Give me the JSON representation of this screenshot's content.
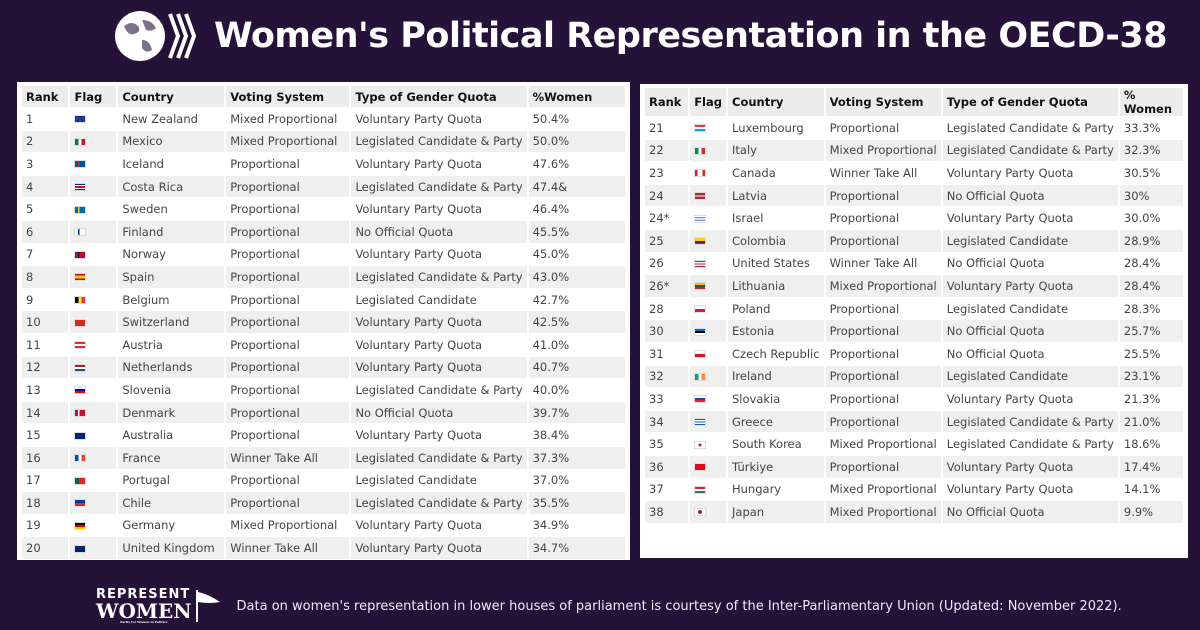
{
  "header": {
    "title": "Women's Political Representation in the OECD-38",
    "logo_icon": "oecd-globe-icon"
  },
  "columns_left": [
    "Rank",
    "Flag",
    "Country",
    "Voting System",
    "Type of Gender Quota",
    "%Women"
  ],
  "columns_right": [
    "Rank",
    "Flag",
    "Country",
    "Voting System",
    "Type of Gender Quota",
    "% Women"
  ],
  "rows_left": [
    [
      "1",
      "nz",
      "New Zealand",
      "Mixed Proportional",
      "Voluntary Party Quota",
      "50.4%"
    ],
    [
      "2",
      "mx",
      "Mexico",
      "Mixed Proportional",
      "Legislated Candidate & Party",
      "50.0%"
    ],
    [
      "3",
      "is",
      "Iceland",
      "Proportional",
      "Voluntary Party Quota",
      "47.6%"
    ],
    [
      "4",
      "cr",
      "Costa Rica",
      "Proportional",
      "Legislated Candidate & Party",
      "47.4&"
    ],
    [
      "5",
      "se",
      "Sweden",
      "Proportional",
      "Voluntary Party Quota",
      "46.4%"
    ],
    [
      "6",
      "fi",
      "Finland",
      "Proportional",
      "No Official Quota",
      "45.5%"
    ],
    [
      "7",
      "no",
      "Norway",
      "Proportional",
      "Voluntary Party Quota",
      "45.0%"
    ],
    [
      "8",
      "es",
      "Spain",
      "Proportional",
      "Legislated Candidate & Party",
      "43.0%"
    ],
    [
      "9",
      "be",
      "Belgium",
      "Proportional",
      "Legislated Candidate",
      "42.7%"
    ],
    [
      "10",
      "ch",
      "Switzerland",
      "Proportional",
      "Voluntary Party Quota",
      "42.5%"
    ],
    [
      "11",
      "at",
      "Austria",
      "Proportional",
      "Voluntary Party Quota",
      "41.0%"
    ],
    [
      "12",
      "nl",
      "Netherlands",
      "Proportional",
      "Voluntary Party Quota",
      "40.7%"
    ],
    [
      "13",
      "si",
      "Slovenia",
      "Proportional",
      "Legislated Candidate & Party",
      "40.0%"
    ],
    [
      "14",
      "dk",
      "Denmark",
      "Proportional",
      "No Official Quota",
      "39.7%"
    ],
    [
      "15",
      "au",
      "Australia",
      "Proportional",
      "Voluntary Party Quota",
      "38.4%"
    ],
    [
      "16",
      "fr",
      "France",
      "Winner Take All",
      "Legislated Candidate & Party",
      "37.3%"
    ],
    [
      "17",
      "pt",
      "Portugal",
      "Proportional",
      "Legislated Candidate",
      "37.0%"
    ],
    [
      "18",
      "cl",
      "Chile",
      "Proportional",
      "Legislated Candidate & Party",
      "35.5%"
    ],
    [
      "19",
      "de",
      "Germany",
      "Mixed Proportional",
      "Voluntary Party Quota",
      "34.9%"
    ],
    [
      "20",
      "gb",
      "United Kingdom",
      "Winner Take All",
      "Voluntary Party Quota",
      "34.7%"
    ]
  ],
  "rows_right": [
    [
      "21",
      "lu",
      "Luxembourg",
      "Proportional",
      "Legislated Candidate & Party",
      "33.3%"
    ],
    [
      "22",
      "it",
      "Italy",
      "Mixed Proportional",
      "Legislated Candidate & Party",
      "32.3%"
    ],
    [
      "23",
      "ca",
      "Canada",
      "Winner Take All",
      "Voluntary Party Quota",
      "30.5%"
    ],
    [
      "24",
      "lv",
      "Latvia",
      "Proportional",
      "No Official Quota",
      "30%"
    ],
    [
      "24*",
      "il",
      "Israel",
      "Proportional",
      "Voluntary Party Quota",
      "30.0%"
    ],
    [
      "25",
      "co",
      "Colombia",
      "Proportional",
      "Legislated Candidate",
      "28.9%"
    ],
    [
      "26",
      "us",
      "United States",
      "Winner Take All",
      "No Official Quota",
      "28.4%"
    ],
    [
      "26*",
      "lt",
      "Lithuania",
      "Mixed Proportional",
      "Voluntary Party Quota",
      "28.4%"
    ],
    [
      "28",
      "pl",
      "Poland",
      "Proportional",
      "Legislated Candidate",
      "28.3%"
    ],
    [
      "30",
      "ee",
      "Estonia",
      "Proportional",
      "No Official Quota",
      "25.7%"
    ],
    [
      "31",
      "cz",
      "Czech Republic",
      "Proportional",
      "No Official Quota",
      "25.5%"
    ],
    [
      "32",
      "ie",
      "Ireland",
      "Proportional",
      "Legislated Candidate",
      "23.1%"
    ],
    [
      "33",
      "sk",
      "Slovakia",
      "Proportional",
      "Voluntary Party Quota",
      "21.3%"
    ],
    [
      "34",
      "gr",
      "Greece",
      "Proportional",
      "Legislated Candidate & Party",
      "21.0%"
    ],
    [
      "35",
      "kr",
      "South Korea",
      "Mixed Proportional",
      "Legislated Candidate & Party",
      "18.6%"
    ],
    [
      "36",
      "tr",
      "Türkiye",
      "Proportional",
      "Voluntary Party Quota",
      "17.4%"
    ],
    [
      "37",
      "hu",
      "Hungary",
      "Mixed Proportional",
      "Voluntary Party Quota",
      "14.1%"
    ],
    [
      "38",
      "jp",
      "Japan",
      "Mixed Proportional",
      "No Official Quota",
      "9.9%"
    ]
  ],
  "footer": {
    "logo_line1": "REPRESENT",
    "logo_line2": "WOMEN",
    "logo_tagline": "Parity for Women in Politics",
    "note": "Data on women's representation in lower houses of parliament is courtesy of the Inter-Parliamentary Union (Updated: November 2022)."
  },
  "colors": {
    "background": "#241238",
    "row_alt": "#efefef",
    "header_bg": "#ececec"
  }
}
